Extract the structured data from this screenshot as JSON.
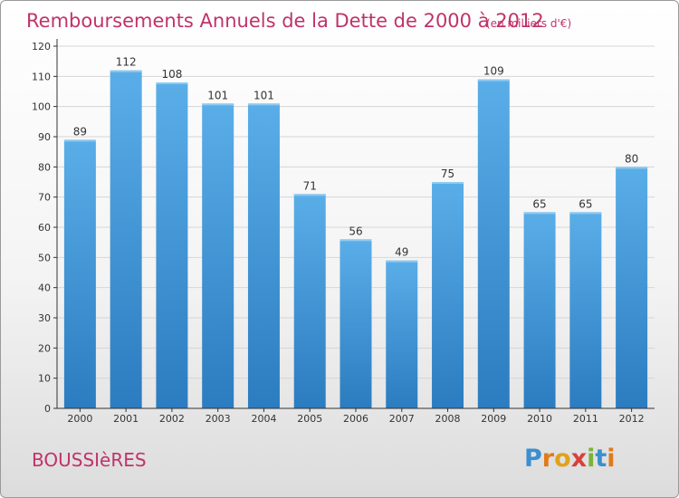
{
  "chart_data": {
    "type": "bar",
    "title": "Remboursements Annuels de la Dette de 2000 à 2012",
    "subtitle": "(en milliers d'€)",
    "categories": [
      "2000",
      "2001",
      "2002",
      "2003",
      "2004",
      "2005",
      "2006",
      "2007",
      "2008",
      "2009",
      "2010",
      "2011",
      "2012"
    ],
    "values": [
      89,
      112,
      108,
      101,
      101,
      71,
      56,
      49,
      75,
      109,
      65,
      65,
      80
    ],
    "yticks": [
      0,
      10,
      20,
      30,
      40,
      50,
      60,
      70,
      80,
      90,
      100,
      110,
      120
    ],
    "ylim": [
      0,
      120
    ],
    "grid": true,
    "legend": "none",
    "colors": {
      "bar_top": "#5aaee8",
      "bar_bottom": "#2b7cc0",
      "title": "#c0336a",
      "axis": "#333333",
      "grid": "#d6d6d6"
    }
  },
  "footer": {
    "place_name": "BOUSSIèRES",
    "brand_letters": [
      {
        "ch": "P",
        "color": "#3a8fd0"
      },
      {
        "ch": "r",
        "color": "#e07b1a"
      },
      {
        "ch": "o",
        "color": "#e0a21a"
      },
      {
        "ch": "x",
        "color": "#d8403a"
      },
      {
        "ch": "i",
        "color": "#7ab23a"
      },
      {
        "ch": "t",
        "color": "#3a8fd0"
      },
      {
        "ch": "i",
        "color": "#e07b1a"
      }
    ]
  }
}
